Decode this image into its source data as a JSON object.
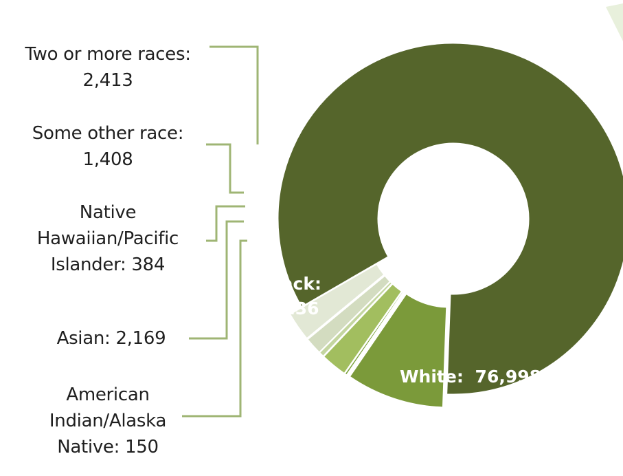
{
  "chart_data": {
    "type": "pie",
    "style": "exploded-donut",
    "title": "",
    "labels": [
      "White",
      "Black",
      "American Indian/Alaska Native",
      "Asian",
      "Native Hawaiian/Pacific Islander",
      "Some other race",
      "Two or more races"
    ],
    "values": [
      76998,
      8236,
      150,
      2169,
      384,
      1408,
      2413
    ],
    "colors": [
      "#55652b",
      "#7b9a3a",
      "#7aa03a",
      "#a2be5f",
      "#c4d6a0",
      "#d3dcc0",
      "#e2e8d5"
    ],
    "value_labels": [
      "76,998",
      "8,236",
      "150",
      "2,169",
      "384",
      "1,408",
      "2,413"
    ],
    "label_text": {
      "white_name": "White:",
      "white_value": "76,998",
      "black_name": "Black:",
      "black_value": "8,236",
      "two_line1": "Two or more races:",
      "two_line2": "2,413",
      "other_line1": "Some other race:",
      "other_line2": "1,408",
      "nh_line1": "Native",
      "nh_line2": "Hawaiian/Pacific",
      "nh_line3": "Islander:  384",
      "asian_line1": "Asian: 2,169",
      "ai_line1": "American",
      "ai_line2": "Indian/Alaska",
      "ai_line3": "Native:  150"
    },
    "legend": "none",
    "grid": false
  }
}
